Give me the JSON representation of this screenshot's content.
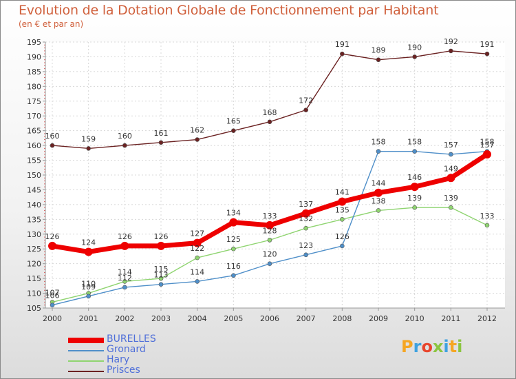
{
  "title": "Evolution de la Dotation Globale de Fonctionnement par Habitant",
  "subtitle": "(en € et par an)",
  "logo_text": "Proxiti",
  "chart_data": {
    "type": "line",
    "title": "Evolution de la Dotation Globale de Fonctionnement par Habitant",
    "subtitle": "(en € et par an)",
    "x": [
      2000,
      2001,
      2002,
      2003,
      2004,
      2005,
      2006,
      2007,
      2008,
      2009,
      2010,
      2011,
      2012
    ],
    "ylim": [
      105,
      195
    ],
    "yticks": [
      105,
      110,
      115,
      120,
      125,
      130,
      135,
      140,
      145,
      150,
      155,
      160,
      165,
      170,
      175,
      180,
      185,
      190,
      195
    ],
    "grid": true,
    "legend_position": "bottom-left",
    "series": [
      {
        "name": "BURELLES",
        "color": "#ee0000",
        "values": [
          126,
          124,
          126,
          126,
          127,
          134,
          133,
          137,
          141,
          144,
          146,
          149,
          157
        ]
      },
      {
        "name": "Gronard",
        "color": "#4f8fc9",
        "values": [
          106,
          109,
          112,
          113,
          114,
          116,
          120,
          123,
          126,
          158,
          158,
          157,
          158
        ]
      },
      {
        "name": "Hary",
        "color": "#8fd470",
        "values": [
          107,
          110,
          114,
          115,
          122,
          125,
          128,
          132,
          135,
          138,
          139,
          139,
          133
        ]
      },
      {
        "name": "Prisces",
        "color": "#6b2222",
        "values": [
          160,
          159,
          160,
          161,
          162,
          165,
          168,
          172,
          191,
          189,
          190,
          192,
          191
        ]
      }
    ]
  }
}
